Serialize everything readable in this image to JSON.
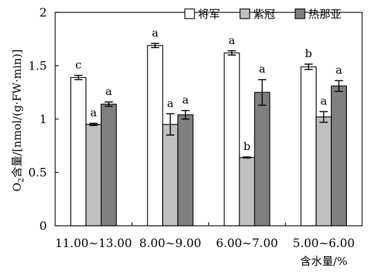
{
  "chart_data": {
    "type": "bar",
    "title": "",
    "xlabel": "含水量/%",
    "ylabel": "O₂含量/[nmol/(g·FW·min)]",
    "ylabel_parts": {
      "pre": "O",
      "sub": "2",
      "post": "含量/[nmol/(g·FW·min)]"
    },
    "categories": [
      "11.00~13.00",
      "8.00~9.00",
      "6.00~7.00",
      "5.00~6.00"
    ],
    "ylim": [
      0,
      2
    ],
    "yticks": [
      0,
      0.5,
      1,
      1.5,
      2
    ],
    "ytick_labels": [
      "0",
      "0.5",
      "1",
      "1.5",
      "2"
    ],
    "grid": false,
    "legend_position": "top-right",
    "series": [
      {
        "name": "将军",
        "color": "#ffffff",
        "values": [
          1.39,
          1.69,
          1.62,
          1.49
        ],
        "errors": [
          0.02,
          0.02,
          0.02,
          0.025
        ],
        "labels": [
          "c",
          "a",
          "a",
          "b"
        ]
      },
      {
        "name": "紫冠",
        "color": "#c0c0c0",
        "values": [
          0.95,
          0.95,
          0.64,
          1.02
        ],
        "errors": [
          0.01,
          0.1,
          0.005,
          0.05
        ],
        "labels": [
          "a",
          "a",
          "b",
          "a"
        ]
      },
      {
        "name": "热那亚",
        "color": "#808080",
        "values": [
          1.14,
          1.04,
          1.25,
          1.31
        ],
        "errors": [
          0.02,
          0.04,
          0.12,
          0.05
        ],
        "labels": [
          "a",
          "a",
          "a",
          "a"
        ]
      }
    ]
  }
}
